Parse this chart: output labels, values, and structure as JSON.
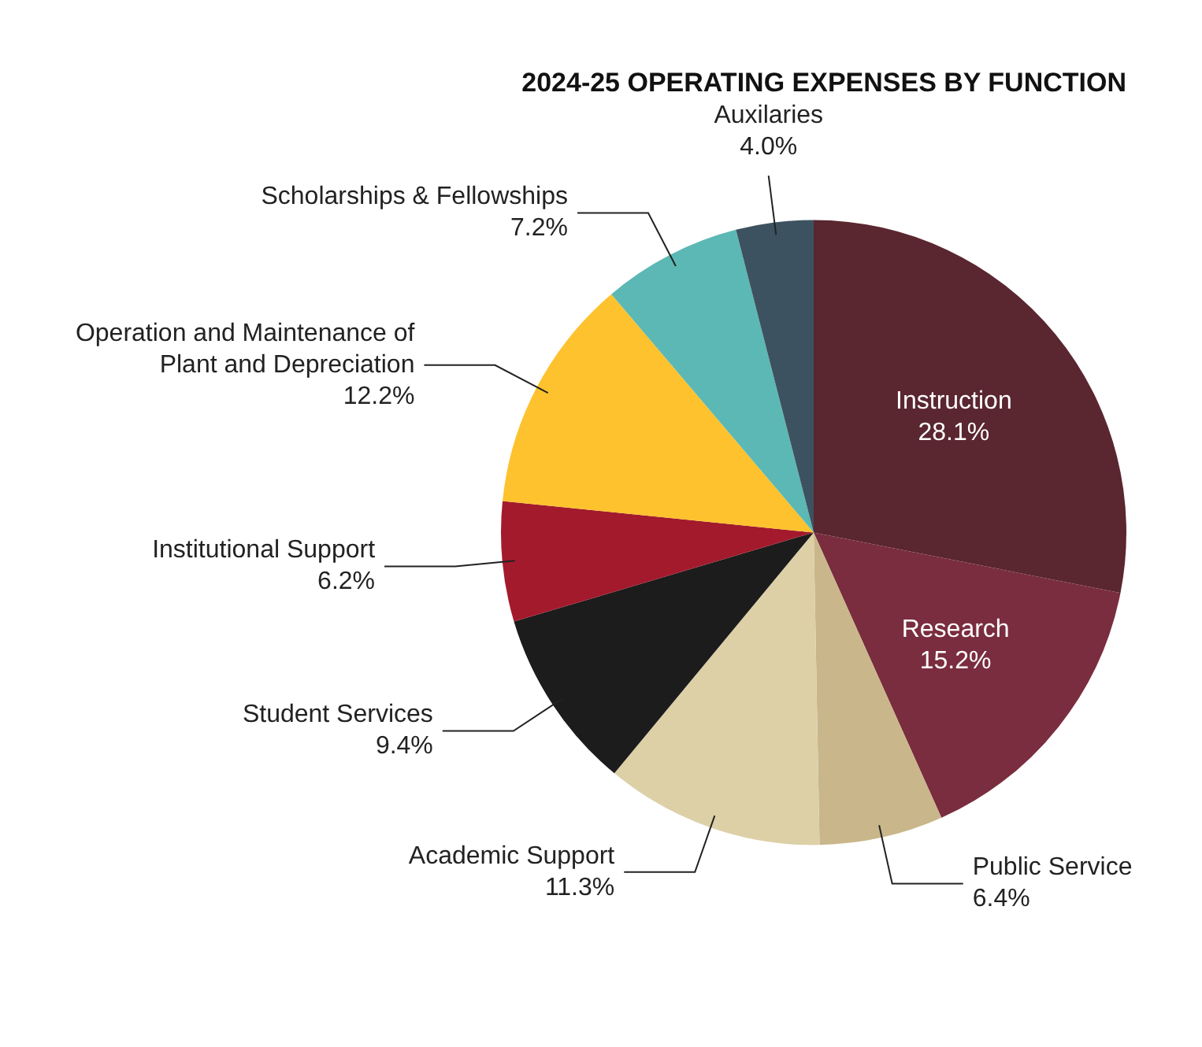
{
  "chart_data": {
    "type": "pie",
    "title": "2024-25 OPERATING EXPENSES BY FUNCTION",
    "categories": [
      "Instruction",
      "Research",
      "Public Service",
      "Academic Support",
      "Student Services",
      "Institutional Support",
      "Operation and Maintenance of Plant and Depreciation",
      "Scholarships & Fellowships",
      "Auxilaries"
    ],
    "values": [
      28.1,
      15.2,
      6.4,
      11.3,
      9.4,
      6.2,
      12.2,
      7.2,
      4.0
    ],
    "value_labels": [
      "28.1%",
      "15.2%",
      "6.4%",
      "11.3%",
      "9.4%",
      "6.2%",
      "12.2%",
      "7.2%",
      "4.0%"
    ],
    "colors": [
      "#5a2630",
      "#7a2d3e",
      "#c9b68a",
      "#ddd0a7",
      "#1c1c1c",
      "#a31a2c",
      "#fdc22e",
      "#5cb8b4",
      "#3d5260"
    ],
    "legend": false
  }
}
